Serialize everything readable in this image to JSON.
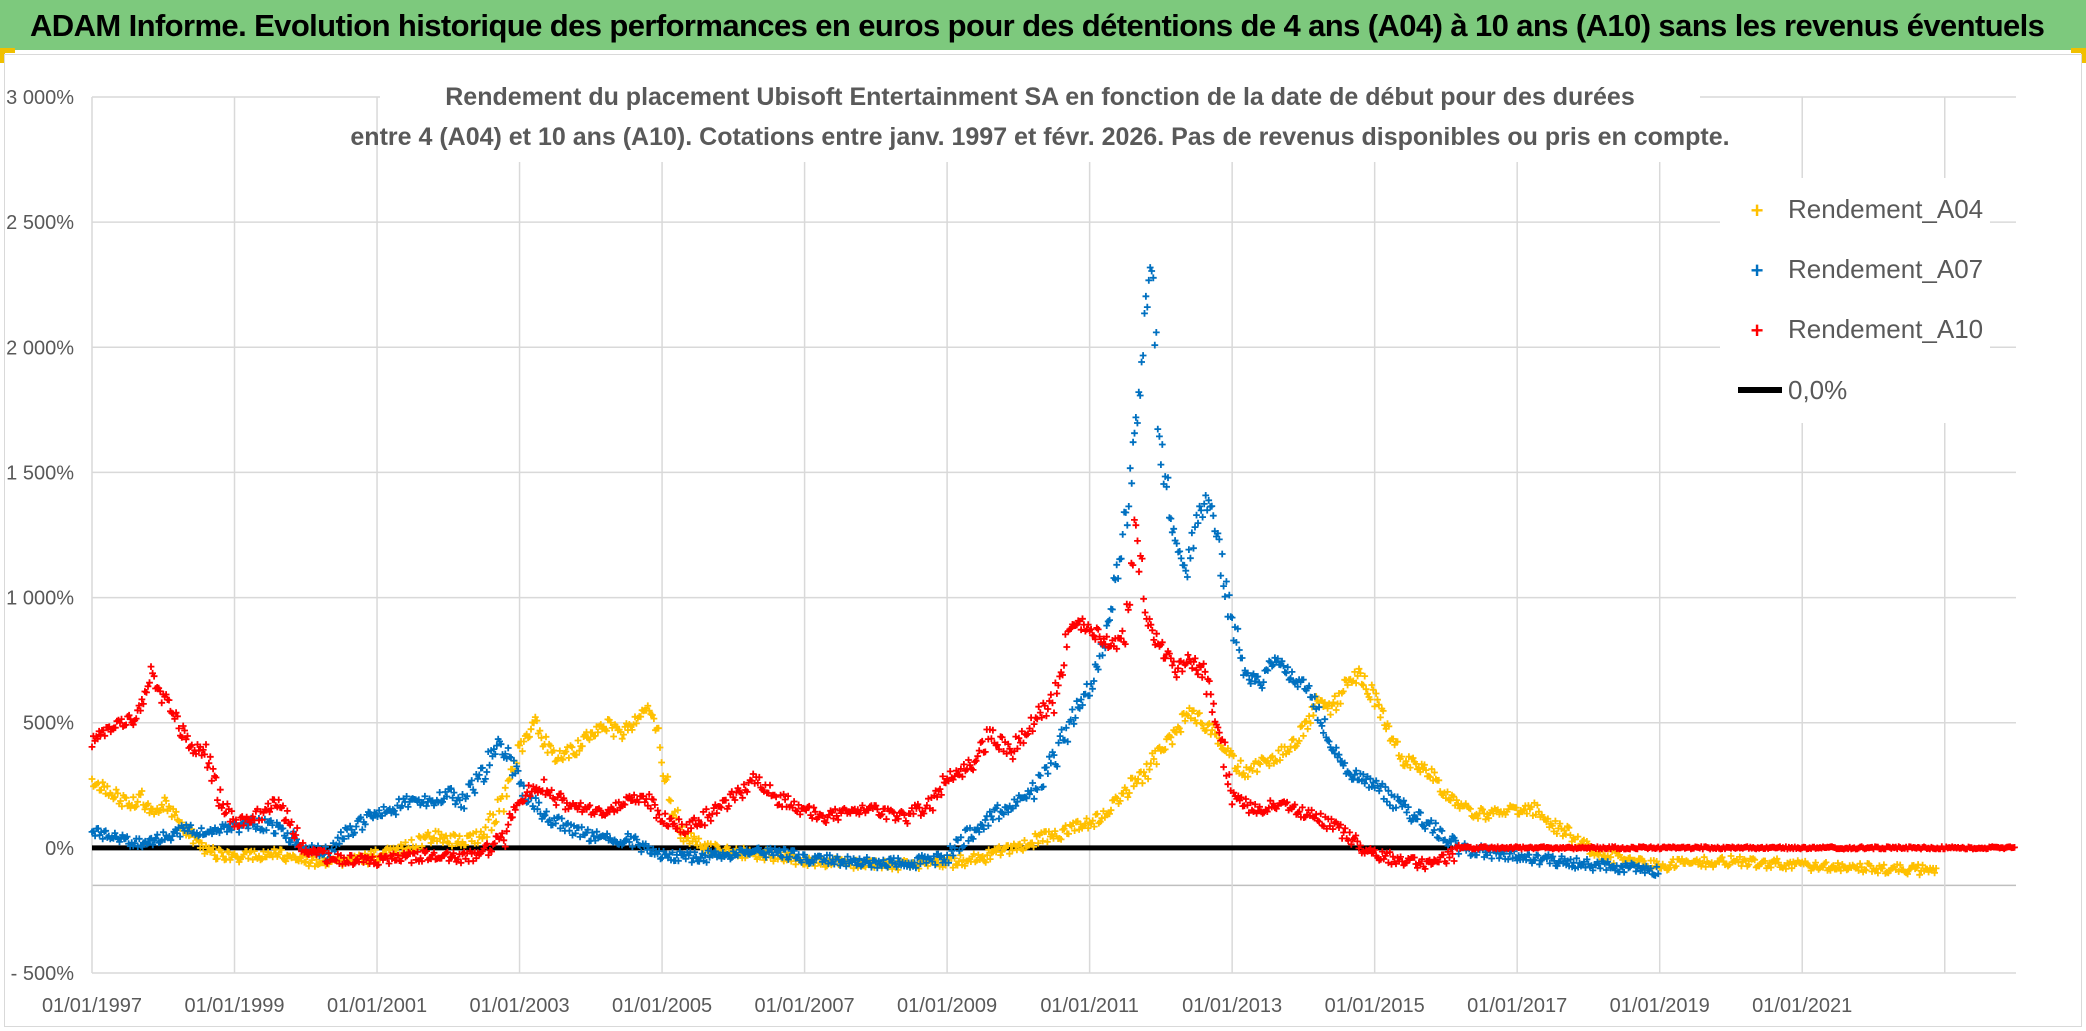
{
  "header": {
    "title": "ADAM Informe. Evolution historique des performances en euros pour des détentions de 4 ans (A04) à 10 ans (A10) sans les revenus éventuels"
  },
  "chart_data": {
    "type": "scatter",
    "title_line1": "Rendement du placement Ubisoft Entertainment SA en fonction de la date de début pour des durées",
    "title_line2": "entre 4 (A04) et 10 ans (A10). Cotations entre janv. 1997 et févr. 2026. Pas de revenus disponibles ou pris en compte.",
    "xlim": [
      1997.0,
      2024.0
    ],
    "ylim": [
      -500,
      3000
    ],
    "y_ticks": [
      -500,
      0,
      500,
      1000,
      1500,
      2000,
      2500,
      3000
    ],
    "y_tick_labels": [
      "- 500%",
      "0%",
      "500%",
      "1 000%",
      "1 500%",
      "2 000%",
      "2 500%",
      "3 000%"
    ],
    "x_ticks": [
      1997,
      1999,
      2001,
      2003,
      2005,
      2007,
      2009,
      2011,
      2013,
      2015,
      2017,
      2019,
      2021
    ],
    "x_tick_labels": [
      "01/01/1997",
      "01/01/1999",
      "01/01/2001",
      "01/01/2003",
      "01/01/2005",
      "01/01/2007",
      "01/01/2009",
      "01/01/2011",
      "01/01/2013",
      "01/01/2015",
      "01/01/2017",
      "01/01/2019",
      "01/01/2021"
    ],
    "vertical_gridlines_at": [
      1997,
      1999,
      2001,
      2003,
      2005,
      2007,
      2009,
      2011,
      2013,
      2015,
      2017,
      2019,
      2021,
      2023
    ],
    "zero_line_label": "0,0%",
    "legend_position": "top-right",
    "series": [
      {
        "name": "Rendement_A04",
        "color": "#ffc000",
        "x": [
          1997.0,
          1997.15,
          1997.3,
          1997.5,
          1997.7,
          1997.85,
          1998.0,
          1998.2,
          1998.4,
          1998.6,
          1998.8,
          1999.0,
          1999.3,
          1999.6,
          1999.8,
          2000.0,
          2000.3,
          2000.6,
          2001.0,
          2001.4,
          2001.8,
          2002.2,
          2002.5,
          2002.8,
          2003.0,
          2003.2,
          2003.5,
          2003.8,
          2004.0,
          2004.2,
          2004.4,
          2004.6,
          2004.8,
          2004.95,
          2005.1,
          2005.3,
          2005.6,
          2006.0,
          2006.5,
          2007.0,
          2007.5,
          2008.0,
          2008.5,
          2009.0,
          2009.5,
          2010.0,
          2010.3,
          2010.6,
          2011.0,
          2011.3,
          2011.6,
          2011.8,
          2012.0,
          2012.2,
          2012.4,
          2012.6,
          2012.8,
          2013.0,
          2013.2,
          2013.5,
          2013.8,
          2014.0,
          2014.2,
          2014.4,
          2014.6,
          2014.8,
          2015.0,
          2015.2,
          2015.4,
          2015.6,
          2015.8,
          2016.0,
          2016.3,
          2016.6,
          2016.9,
          2017.2,
          2017.6,
          2018.0,
          2018.5,
          2019.0,
          2019.5,
          2020.0,
          2020.5,
          2021.0,
          2021.5,
          2022.0,
          2022.5,
          2022.9
        ],
        "y": [
          260,
          240,
          220,
          170,
          200,
          140,
          180,
          120,
          50,
          -10,
          -30,
          -40,
          -30,
          -20,
          -40,
          -50,
          -60,
          -60,
          -30,
          0,
          50,
          20,
          50,
          200,
          400,
          500,
          350,
          400,
          450,
          500,
          450,
          500,
          550,
          450,
          200,
          50,
          0,
          -20,
          -30,
          -50,
          -60,
          -70,
          -70,
          -60,
          -40,
          0,
          40,
          60,
          100,
          150,
          250,
          300,
          400,
          450,
          550,
          500,
          450,
          350,
          300,
          350,
          400,
          480,
          600,
          550,
          650,
          700,
          600,
          450,
          350,
          330,
          300,
          200,
          150,
          130,
          150,
          160,
          80,
          0,
          -50,
          -70,
          -60,
          -50,
          -60,
          -70,
          -80,
          -80,
          -85,
          -90
        ]
      },
      {
        "name": "Rendement_A07",
        "color": "#0070c0",
        "x": [
          1997.0,
          1997.3,
          1997.6,
          1998.0,
          1998.3,
          1998.6,
          1999.0,
          1999.3,
          1999.7,
          2000.0,
          2000.3,
          2000.6,
          2000.9,
          2001.2,
          2001.5,
          2001.8,
          2002.0,
          2002.2,
          2002.5,
          2002.7,
          2002.9,
          2003.1,
          2003.4,
          2003.7,
          2004.0,
          2004.5,
          2005.0,
          2005.5,
          2006.0,
          2006.5,
          2007.0,
          2007.5,
          2008.0,
          2008.5,
          2009.0,
          2009.3,
          2009.6,
          2009.9,
          2010.2,
          2010.5,
          2010.8,
          2011.0,
          2011.2,
          2011.4,
          2011.55,
          2011.65,
          2011.75,
          2011.85,
          2012.0,
          2012.2,
          2012.35,
          2012.5,
          2012.65,
          2012.8,
          2013.0,
          2013.2,
          2013.4,
          2013.6,
          2013.8,
          2014.0,
          2014.2,
          2014.4,
          2014.6,
          2014.8,
          2015.0,
          2015.3,
          2015.6,
          2015.9,
          2016.2,
          2016.6,
          2017.0,
          2017.5,
          2018.0,
          2018.5,
          2019.0
        ],
        "y": [
          60,
          40,
          20,
          40,
          80,
          60,
          80,
          100,
          70,
          0,
          -20,
          60,
          120,
          150,
          200,
          180,
          220,
          180,
          300,
          450,
          320,
          200,
          120,
          80,
          50,
          30,
          -30,
          -40,
          -20,
          -20,
          -40,
          -50,
          -60,
          -60,
          -40,
          50,
          120,
          180,
          220,
          350,
          550,
          650,
          800,
          1100,
          1400,
          1700,
          2000,
          2400,
          1600,
          1200,
          1100,
          1300,
          1400,
          1200,
          900,
          700,
          650,
          750,
          700,
          650,
          550,
          400,
          300,
          280,
          250,
          180,
          120,
          60,
          0,
          -20,
          -30,
          -50,
          -70,
          -80,
          -90
        ]
      },
      {
        "name": "Rendement_A10",
        "color": "#ff0000",
        "x": [
          1997.0,
          1997.2,
          1997.5,
          1997.7,
          1997.85,
          1998.0,
          1998.2,
          1998.4,
          1998.6,
          1998.8,
          1999.0,
          1999.3,
          1999.6,
          1999.8,
          2000.0,
          2000.3,
          2000.6,
          2001.0,
          2001.4,
          2001.8,
          2002.2,
          2002.5,
          2002.8,
          2003.0,
          2003.3,
          2003.6,
          2003.9,
          2004.2,
          2004.5,
          2004.8,
          2005.0,
          2005.3,
          2005.6,
          2006.0,
          2006.3,
          2006.6,
          2007.0,
          2007.3,
          2007.6,
          2008.0,
          2008.4,
          2008.8,
          2009.0,
          2009.3,
          2009.6,
          2009.9,
          2010.2,
          2010.5,
          2010.7,
          2010.9,
          2011.1,
          2011.3,
          2011.5,
          2011.65,
          2011.8,
          2012.0,
          2012.2,
          2012.4,
          2012.6,
          2012.8,
          2013.0,
          2013.3,
          2013.6,
          2013.9,
          2014.2,
          2014.5,
          2014.8,
          2015.0,
          2015.3,
          2015.6,
          2015.9,
          2016.2,
          2016.6,
          2017.0,
          2017.5,
          2018.0,
          2018.5,
          2019.0,
          2019.5,
          2020.0,
          2020.5,
          2021.0,
          2021.5,
          2022.0,
          2022.5,
          2023.0,
          2023.5,
          2024.0
        ],
        "y": [
          420,
          480,
          500,
          550,
          700,
          600,
          500,
          400,
          380,
          200,
          100,
          120,
          180,
          80,
          -10,
          -40,
          -50,
          -50,
          -40,
          -30,
          -40,
          -20,
          50,
          200,
          250,
          180,
          150,
          150,
          200,
          200,
          120,
          80,
          120,
          200,
          270,
          200,
          150,
          120,
          150,
          150,
          120,
          180,
          280,
          320,
          450,
          380,
          500,
          600,
          850,
          900,
          850,
          800,
          850,
          1300,
          900,
          800,
          700,
          750,
          700,
          500,
          200,
          150,
          170,
          150,
          120,
          80,
          0,
          -20,
          -50,
          -60,
          -70,
          0,
          0,
          0,
          0,
          0,
          0,
          0,
          0,
          0,
          0,
          0,
          0,
          0,
          0,
          0,
          0,
          0
        ]
      }
    ]
  }
}
